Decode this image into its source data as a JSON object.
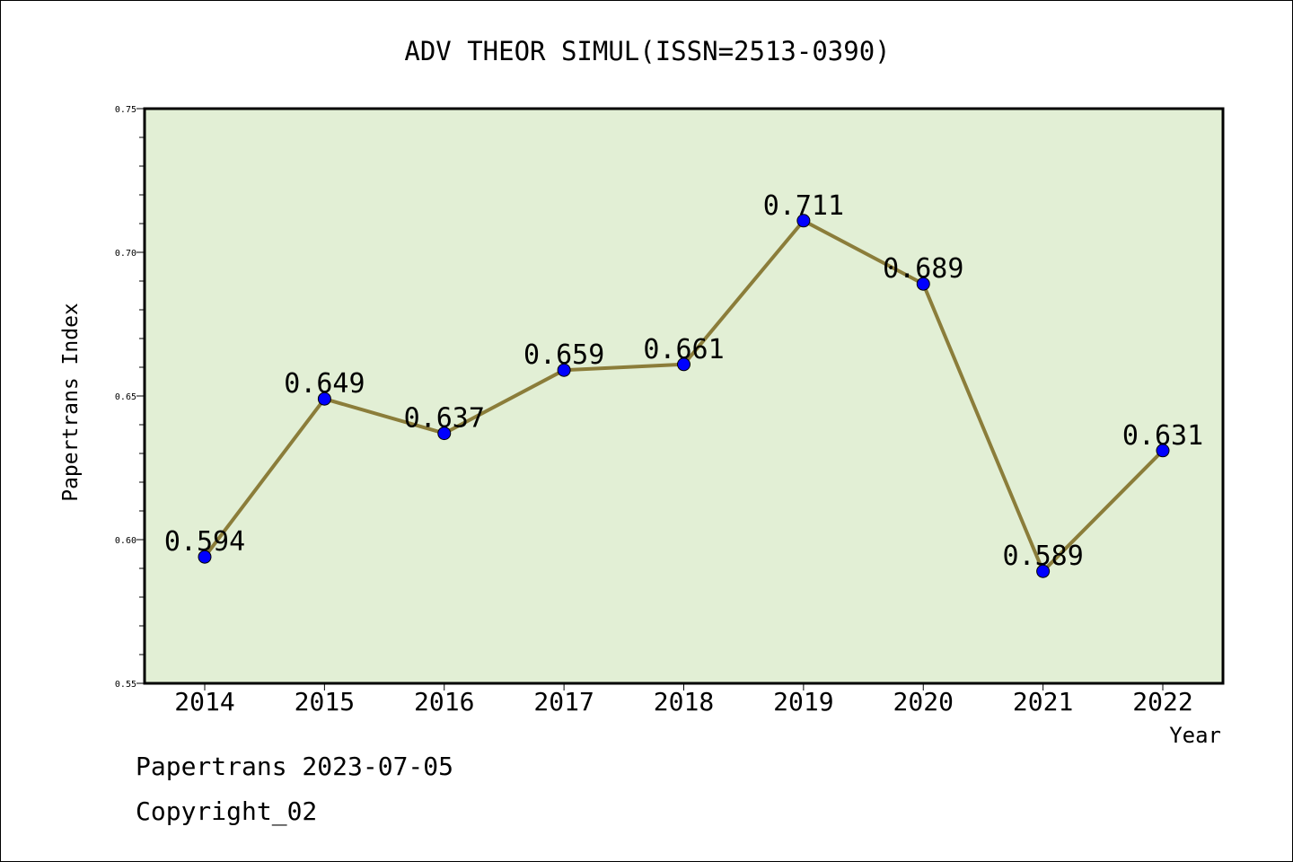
{
  "chart_data": {
    "type": "line",
    "title": "ADV THEOR SIMUL(ISSN=2513-0390)",
    "xlabel": "Year",
    "ylabel": "Papertrans Index",
    "categories": [
      "2014",
      "2015",
      "2016",
      "2017",
      "2018",
      "2019",
      "2020",
      "2021",
      "2022"
    ],
    "series": [
      {
        "values": [
          0.594,
          0.649,
          0.637,
          0.659,
          0.661,
          0.711,
          0.689,
          0.589,
          0.631
        ],
        "labels": [
          "0.594",
          "0.649",
          "0.637",
          "0.659",
          "0.661",
          "0.711",
          "0.689",
          "0.589",
          "0.631"
        ]
      }
    ],
    "ylim": [
      0.55,
      0.75
    ],
    "yticks": [
      "0.55",
      "0.60",
      "0.65",
      "0.70",
      "0.75"
    ],
    "grid": false,
    "colors": {
      "plot_background": "#e2efd5",
      "line": "#8b7d3a",
      "marker": "#0000ff"
    }
  },
  "footer": {
    "line1": "Papertrans 2023-07-05",
    "line2": "Copyright_02"
  }
}
